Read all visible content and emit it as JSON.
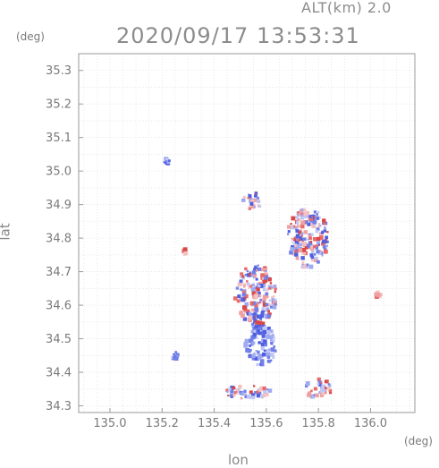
{
  "header": {
    "altitude": "ALT(km)  2.0",
    "timestamp": "2020/09/17 13:53:31",
    "y_unit": "(deg)",
    "x_unit": "(deg)"
  },
  "chart_data": {
    "type": "heatmap",
    "xlabel": "lon",
    "ylabel": "lat",
    "xlim": [
      134.88,
      136.17
    ],
    "ylim": [
      34.28,
      35.35
    ],
    "x_ticks": [
      135.0,
      135.2,
      135.4,
      135.6,
      135.8,
      136.0
    ],
    "y_ticks": [
      34.3,
      34.4,
      34.5,
      34.6,
      34.7,
      34.8,
      34.9,
      35.0,
      35.1,
      35.2,
      35.3
    ],
    "x_tick_labels": [
      "135.0",
      "135.2",
      "135.4",
      "135.6",
      "135.8",
      "136.0"
    ],
    "y_tick_labels": [
      "34.3",
      "34.4",
      "34.5",
      "34.6",
      "34.7",
      "34.8",
      "34.9",
      "35.0",
      "35.1",
      "35.2",
      "35.3"
    ],
    "grid": true,
    "colors": {
      "positive": "#e05050",
      "negative": "#5060e0",
      "grid": "#c8c8c8"
    },
    "echo_regions": [
      {
        "lon": 135.22,
        "lat": 35.03,
        "rx": 0.012,
        "ry": 0.008,
        "sign": "negative"
      },
      {
        "lon": 135.55,
        "lat": 34.91,
        "rx": 0.04,
        "ry": 0.025,
        "sign": "mixed"
      },
      {
        "lon": 135.76,
        "lat": 34.8,
        "rx": 0.08,
        "ry": 0.09,
        "sign": "mixed"
      },
      {
        "lon": 135.29,
        "lat": 34.76,
        "rx": 0.008,
        "ry": 0.008,
        "sign": "positive"
      },
      {
        "lon": 135.56,
        "lat": 34.63,
        "rx": 0.08,
        "ry": 0.09,
        "sign": "mixed"
      },
      {
        "lon": 135.58,
        "lat": 34.48,
        "rx": 0.06,
        "ry": 0.06,
        "sign": "negative"
      },
      {
        "lon": 136.03,
        "lat": 34.63,
        "rx": 0.012,
        "ry": 0.008,
        "sign": "positive"
      },
      {
        "lon": 135.25,
        "lat": 34.45,
        "rx": 0.012,
        "ry": 0.01,
        "sign": "negative"
      },
      {
        "lon": 135.53,
        "lat": 34.34,
        "rx": 0.09,
        "ry": 0.02,
        "sign": "mixed"
      },
      {
        "lon": 135.8,
        "lat": 34.35,
        "rx": 0.05,
        "ry": 0.03,
        "sign": "mixed"
      }
    ]
  }
}
